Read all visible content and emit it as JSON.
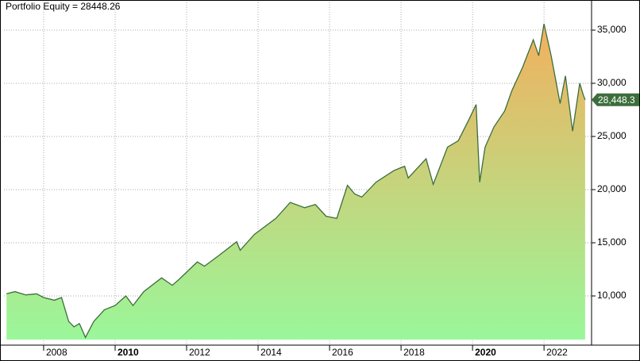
{
  "chart_data": {
    "type": "area",
    "title": "Portfolio Equity = 28448.26",
    "x": [
      2006.96,
      2007.2,
      2007.5,
      2007.8,
      2008.0,
      2008.3,
      2008.5,
      2008.7,
      2008.85,
      2009.0,
      2009.17,
      2009.4,
      2009.7,
      2010.0,
      2010.3,
      2010.5,
      2010.8,
      2011.3,
      2011.6,
      2011.8,
      2012.3,
      2012.5,
      2012.9,
      2013.4,
      2013.5,
      2013.9,
      2014.5,
      2014.9,
      2015.3,
      2015.6,
      2015.9,
      2016.2,
      2016.5,
      2016.7,
      2016.9,
      2017.3,
      2017.8,
      2018.1,
      2018.2,
      2018.7,
      2018.9,
      2019.3,
      2019.6,
      2019.9,
      2020.1,
      2020.2,
      2020.35,
      2020.6,
      2020.9,
      2021.1,
      2021.4,
      2021.7,
      2021.85,
      2022.0,
      2022.2,
      2022.45,
      2022.6,
      2022.8,
      2023.0,
      2023.1,
      2023.15
    ],
    "values": [
      10200,
      10400,
      10100,
      10200,
      9850,
      9600,
      9850,
      7600,
      7100,
      7400,
      6100,
      7600,
      8700,
      9100,
      10000,
      9100,
      10400,
      11700,
      11000,
      11600,
      13200,
      12800,
      13800,
      15100,
      14300,
      15800,
      17300,
      18800,
      18300,
      18600,
      17500,
      17300,
      20400,
      19600,
      19300,
      20700,
      21800,
      22200,
      21100,
      22900,
      20500,
      24000,
      24600,
      26600,
      28000,
      20700,
      24000,
      25900,
      27400,
      29300,
      31500,
      34100,
      32600,
      35600,
      32600,
      28100,
      30700,
      25500,
      30000,
      28900,
      28448.26
    ],
    "last_value": {
      "value": 28448.26,
      "label": "28,448.3"
    },
    "line_color": "#3c6e3c",
    "fill_bottom_color": "#9af79a",
    "fill_top_color": "#f2b05e",
    "last_marker_color": "#3c6e3c",
    "xlim": [
      2006.89,
      2023.33
    ],
    "xticks": [
      2008,
      2010,
      2012,
      2014,
      2016,
      2018,
      2020,
      2022
    ],
    "ylim": [
      5373,
      37612
    ],
    "yticks": [
      {
        "value": 10000,
        "label": "10,000"
      },
      {
        "value": 15000,
        "label": "15,000"
      },
      {
        "value": 20000,
        "label": "20,000"
      },
      {
        "value": 25000,
        "label": "25,000"
      },
      {
        "value": 30000,
        "label": "30,000"
      },
      {
        "value": 35000,
        "label": "35,000"
      }
    ],
    "grid": true
  }
}
